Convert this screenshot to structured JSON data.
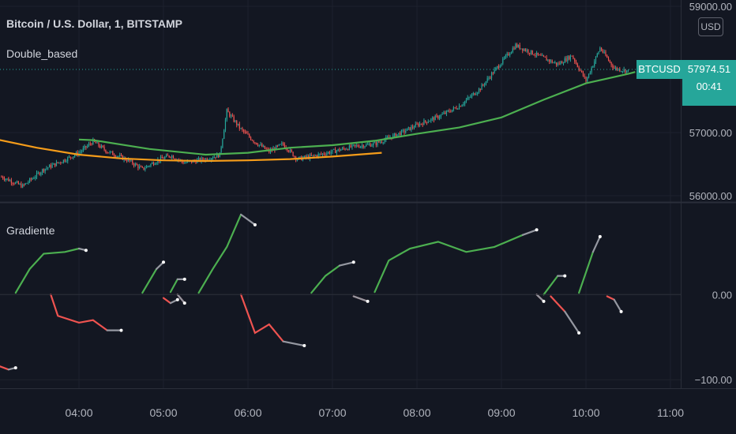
{
  "header": {
    "symbol_title": "Bitcoin / U.S. Dollar, 1, BITSTAMP",
    "indicator1": "Double_based",
    "indicator2": "Gradiente"
  },
  "price_scale": {
    "currency_badge": "USD"
  },
  "last_price": {
    "symbol": "BTCUSD",
    "value": "57974.51",
    "countdown": "00:41"
  },
  "colors": {
    "background": "#131722",
    "grid": "#1e222d",
    "bull_candle": "#26a69a",
    "bear_candle": "#ef5350",
    "ma_orange": "#f59c1a",
    "ma_green": "#4caf50",
    "osc_green": "#4caf50",
    "osc_red": "#ef5350",
    "osc_gray": "#9598a1",
    "accent": "#26a69a"
  },
  "chart_data": [
    {
      "type": "line",
      "title": "Bitcoin / U.S. Dollar, 1, BITSTAMP",
      "x_ticks": [
        "04:00",
        "05:00",
        "06:00",
        "07:00",
        "08:00",
        "09:00",
        "10:00",
        "11:00"
      ],
      "y_ticks": [
        "59000.00",
        "57000.00",
        "56000.00"
      ],
      "ylim": [
        55900,
        59100
      ],
      "price_path": [
        [
          "03:05",
          56300
        ],
        [
          "03:20",
          56150
        ],
        [
          "03:35",
          56420
        ],
        [
          "03:50",
          56570
        ],
        [
          "04:00",
          56680
        ],
        [
          "04:10",
          56860
        ],
        [
          "04:20",
          56700
        ],
        [
          "04:35",
          56560
        ],
        [
          "04:45",
          56420
        ],
        [
          "04:55",
          56550
        ],
        [
          "05:05",
          56640
        ],
        [
          "05:15",
          56520
        ],
        [
          "05:30",
          56580
        ],
        [
          "05:40",
          56650
        ],
        [
          "05:45",
          57340
        ],
        [
          "05:55",
          57050
        ],
        [
          "06:05",
          56850
        ],
        [
          "06:15",
          56700
        ],
        [
          "06:25",
          56820
        ],
        [
          "06:35",
          56580
        ],
        [
          "06:45",
          56620
        ],
        [
          "07:00",
          56700
        ],
        [
          "07:15",
          56780
        ],
        [
          "07:30",
          56820
        ],
        [
          "07:50",
          57010
        ],
        [
          "08:00",
          57120
        ],
        [
          "08:15",
          57250
        ],
        [
          "08:30",
          57420
        ],
        [
          "08:45",
          57700
        ],
        [
          "08:55",
          57980
        ],
        [
          "09:10",
          58380
        ],
        [
          "09:25",
          58230
        ],
        [
          "09:40",
          58080
        ],
        [
          "09:50",
          58220
        ],
        [
          "10:00",
          57820
        ],
        [
          "10:10",
          58340
        ],
        [
          "10:20",
          58020
        ],
        [
          "10:30",
          57974
        ]
      ],
      "ma_orange": [
        [
          "03:00",
          56900
        ],
        [
          "03:30",
          56760
        ],
        [
          "04:00",
          56650
        ],
        [
          "04:30",
          56590
        ],
        [
          "05:00",
          56560
        ],
        [
          "05:30",
          56550
        ],
        [
          "06:00",
          56560
        ],
        [
          "06:30",
          56580
        ],
        [
          "07:00",
          56620
        ],
        [
          "07:35",
          56680
        ]
      ],
      "ma_green": [
        [
          "04:00",
          56890
        ],
        [
          "04:10",
          56880
        ],
        [
          "04:50",
          56740
        ],
        [
          "05:30",
          56650
        ],
        [
          "06:00",
          56680
        ],
        [
          "06:30",
          56760
        ],
        [
          "07:00",
          56800
        ],
        [
          "07:30",
          56870
        ],
        [
          "08:00",
          56980
        ],
        [
          "08:30",
          57080
        ],
        [
          "09:00",
          57240
        ],
        [
          "09:30",
          57520
        ],
        [
          "10:00",
          57780
        ],
        [
          "10:30",
          57930
        ],
        [
          "10:35",
          57960
        ]
      ]
    },
    {
      "type": "line",
      "title": "Gradiente",
      "y_ticks": [
        "0.00",
        "-100.00"
      ],
      "ylim": [
        -110,
        105
      ],
      "segments": [
        {
          "color": "red",
          "points": [
            [
              "03:00",
              -82
            ],
            [
              "03:10",
              -88
            ],
            [
              "03:15",
              -86
            ]
          ]
        },
        {
          "color": "green",
          "points": [
            [
              "03:15",
              2
            ],
            [
              "03:25",
              30
            ],
            [
              "03:35",
              48
            ],
            [
              "03:50",
              50
            ],
            [
              "04:00",
              54
            ],
            [
              "04:05",
              52
            ]
          ]
        },
        {
          "color": "red",
          "points": [
            [
              "03:40",
              0
            ],
            [
              "03:45",
              -25
            ],
            [
              "04:00",
              -33
            ],
            [
              "04:10",
              -30
            ],
            [
              "04:20",
              -42
            ],
            [
              "04:30",
              -42
            ]
          ]
        },
        {
          "color": "green",
          "points": [
            [
              "04:45",
              2
            ],
            [
              "04:55",
              30
            ],
            [
              "05:00",
              38
            ]
          ]
        },
        {
          "color": "red",
          "points": [
            [
              "05:00",
              -4
            ],
            [
              "05:05",
              -10
            ],
            [
              "05:10",
              -6
            ]
          ]
        },
        {
          "color": "green",
          "points": [
            [
              "05:05",
              3
            ],
            [
              "05:10",
              18
            ],
            [
              "05:15",
              18
            ]
          ]
        },
        {
          "color": "red",
          "points": [
            [
              "05:10",
              0
            ],
            [
              "05:15",
              -10
            ]
          ]
        },
        {
          "color": "green",
          "points": [
            [
              "05:25",
              2
            ],
            [
              "05:35",
              30
            ],
            [
              "05:45",
              56
            ],
            [
              "05:55",
              94
            ],
            [
              "06:05",
              82
            ]
          ]
        },
        {
          "color": "red",
          "points": [
            [
              "05:55",
              0
            ],
            [
              "06:05",
              -45
            ],
            [
              "06:15",
              -35
            ],
            [
              "06:25",
              -55
            ],
            [
              "06:40",
              -60
            ]
          ]
        },
        {
          "color": "green",
          "points": [
            [
              "06:45",
              2
            ],
            [
              "06:55",
              22
            ],
            [
              "07:05",
              34
            ],
            [
              "07:15",
              38
            ]
          ]
        },
        {
          "color": "red",
          "points": [
            [
              "07:15",
              -2
            ],
            [
              "07:25",
              -8
            ]
          ]
        },
        {
          "color": "green",
          "points": [
            [
              "07:30",
              3
            ],
            [
              "07:40",
              40
            ],
            [
              "07:55",
              54
            ],
            [
              "08:15",
              62
            ],
            [
              "08:35",
              50
            ],
            [
              "08:55",
              56
            ],
            [
              "09:15",
              70
            ],
            [
              "09:25",
              76
            ]
          ]
        },
        {
          "color": "red",
          "points": [
            [
              "09:25",
              0
            ],
            [
              "09:30",
              -8
            ]
          ]
        },
        {
          "color": "green",
          "points": [
            [
              "09:30",
              0
            ],
            [
              "09:40",
              22
            ],
            [
              "09:45",
              22
            ]
          ]
        },
        {
          "color": "red",
          "points": [
            [
              "09:35",
              -2
            ],
            [
              "09:45",
              -20
            ],
            [
              "09:55",
              -45
            ]
          ]
        },
        {
          "color": "green",
          "points": [
            [
              "09:55",
              2
            ],
            [
              "10:05",
              50
            ],
            [
              "10:10",
              68
            ]
          ]
        },
        {
          "color": "red",
          "points": [
            [
              "10:15",
              -2
            ],
            [
              "10:20",
              -6
            ],
            [
              "10:25",
              -20
            ]
          ]
        }
      ]
    }
  ]
}
